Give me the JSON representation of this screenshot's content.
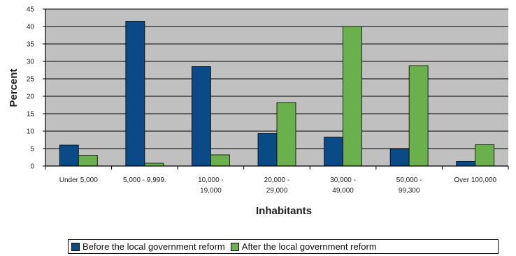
{
  "chart_data": {
    "type": "bar",
    "ylabel": "Percent",
    "xlabel": "Inhabitants",
    "ylim": [
      0,
      45
    ],
    "yticks": [
      0,
      5,
      10,
      15,
      20,
      25,
      30,
      35,
      40,
      45
    ],
    "grid": true,
    "legend_position": "bottom",
    "categories": [
      [
        "Under 5,000"
      ],
      [
        "5,000 - 9,999."
      ],
      [
        "10,000 -",
        "19,000"
      ],
      [
        "20,000 -",
        "29,000"
      ],
      [
        "30,000 -",
        "49,000"
      ],
      [
        "50,000 -",
        "99,300"
      ],
      [
        "Over 100,000"
      ]
    ],
    "series": [
      {
        "name": "Before the local government reform",
        "color": "#0a4a86",
        "values": [
          6,
          41.5,
          28.5,
          9.3,
          8.3,
          4.9,
          1.3
        ]
      },
      {
        "name": "After the local government reform",
        "color": "#6ab04c",
        "values": [
          3.1,
          0.8,
          3.2,
          18.2,
          40,
          28.8,
          6.1
        ]
      }
    ],
    "plot_background": "#c0c0c0"
  }
}
